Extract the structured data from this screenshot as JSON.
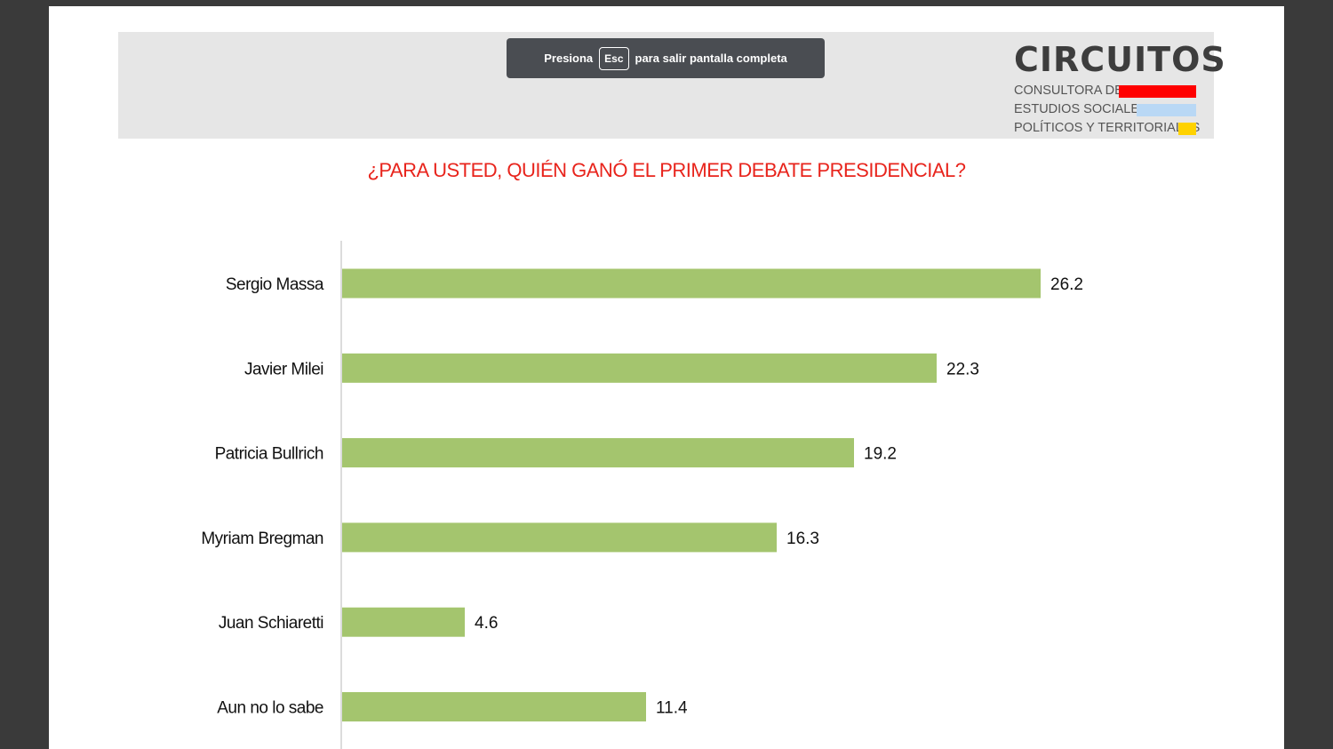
{
  "toast": {
    "prefix": "Presiona",
    "key": "Esc",
    "suffix": "para salir pantalla completa"
  },
  "logo": {
    "title": "CIRCUITOS",
    "line1": "CONSULTORA DE",
    "line2": "ESTUDIOS SOCIALES,",
    "line3": "POLÍTICOS Y TERRITORIALES",
    "stripe_colors": [
      "#ff0000",
      "#b9d8f5",
      "#ffd200"
    ]
  },
  "chart_data": {
    "type": "bar",
    "orientation": "horizontal",
    "title": "¿PARA USTED, QUIÉN GANÓ EL PRIMER DEBATE PRESIDENCIAL?",
    "categories": [
      "Sergio Massa",
      "Javier Milei",
      "Patricia Bullrich",
      "Myriam Bregman",
      "Juan Schiaretti",
      "Aun no lo sabe"
    ],
    "values": [
      26.2,
      22.3,
      19.2,
      16.3,
      4.6,
      11.4
    ],
    "value_labels": [
      "26.2",
      "22.3",
      "19.2",
      "16.3",
      "4.6",
      "11.4"
    ],
    "xlim": [
      0,
      26.2
    ],
    "bar_color": "#a4c56e",
    "title_color": "#e8241c",
    "grid": false,
    "legend": "none"
  }
}
